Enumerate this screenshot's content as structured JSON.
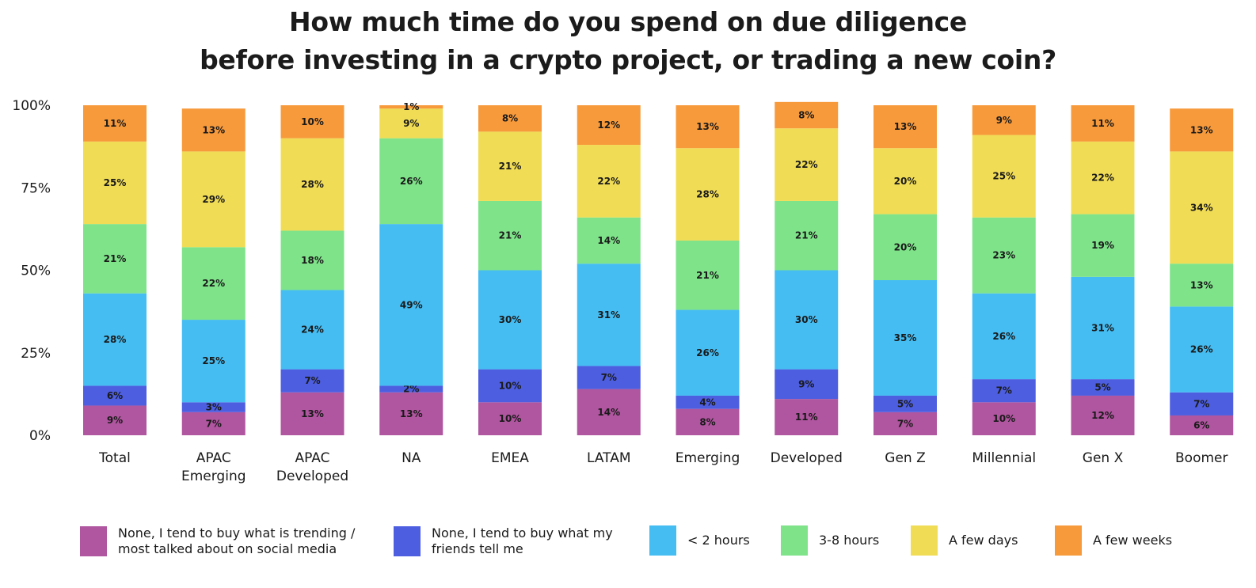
{
  "chart_data": {
    "type": "bar",
    "stacked": true,
    "title_line1": "How much time do you spend on due diligence",
    "title_line2": "before investing in a crypto project, or trading a new coin?",
    "xlabel": "",
    "ylabel": "",
    "ylim": [
      0,
      100
    ],
    "y_ticks": [
      "0%",
      "25%",
      "50%",
      "75%",
      "100%"
    ],
    "grid": false,
    "legend_position": "bottom",
    "categories": [
      [
        "Total"
      ],
      [
        "APAC",
        "Emerging"
      ],
      [
        "APAC",
        "Developed"
      ],
      [
        "NA"
      ],
      [
        "EMEA"
      ],
      [
        "LATAM"
      ],
      [
        "Emerging"
      ],
      [
        "Developed"
      ],
      [
        "Gen Z"
      ],
      [
        "Millennial"
      ],
      [
        "Gen X"
      ],
      [
        "Boomer"
      ]
    ],
    "series": [
      {
        "name": "None, I tend to buy what is trending / most talked about on social media",
        "legend_lines": [
          "None, I tend to buy what is trending /",
          "most talked about on social media"
        ],
        "color": "#B0559F",
        "values": [
          9,
          7,
          13,
          13,
          10,
          14,
          8,
          11,
          7,
          10,
          12,
          6
        ]
      },
      {
        "name": "None, I tend to buy what my friends tell me",
        "legend_lines": [
          "None, I tend to buy what my",
          "friends tell me"
        ],
        "color": "#4D5EE0",
        "values": [
          6,
          3,
          7,
          2,
          10,
          7,
          4,
          9,
          5,
          7,
          5,
          7
        ]
      },
      {
        "name": "< 2 hours",
        "legend_lines": [
          "< 2 hours"
        ],
        "color": "#45BDF2",
        "values": [
          28,
          25,
          24,
          49,
          30,
          31,
          26,
          30,
          35,
          26,
          31,
          26
        ]
      },
      {
        "name": "3-8 hours",
        "legend_lines": [
          "3-8 hours"
        ],
        "color": "#7FE38A",
        "values": [
          21,
          22,
          18,
          26,
          21,
          14,
          21,
          21,
          20,
          23,
          19,
          13
        ]
      },
      {
        "name": "A few days",
        "legend_lines": [
          "A few days"
        ],
        "color": "#F0DC55",
        "values": [
          25,
          29,
          28,
          9,
          21,
          22,
          28,
          22,
          20,
          25,
          22,
          34
        ]
      },
      {
        "name": "A few weeks",
        "legend_lines": [
          "A few weeks"
        ],
        "color": "#F79A3B",
        "values": [
          11,
          13,
          10,
          1,
          8,
          12,
          13,
          8,
          13,
          9,
          11,
          13
        ]
      }
    ]
  }
}
